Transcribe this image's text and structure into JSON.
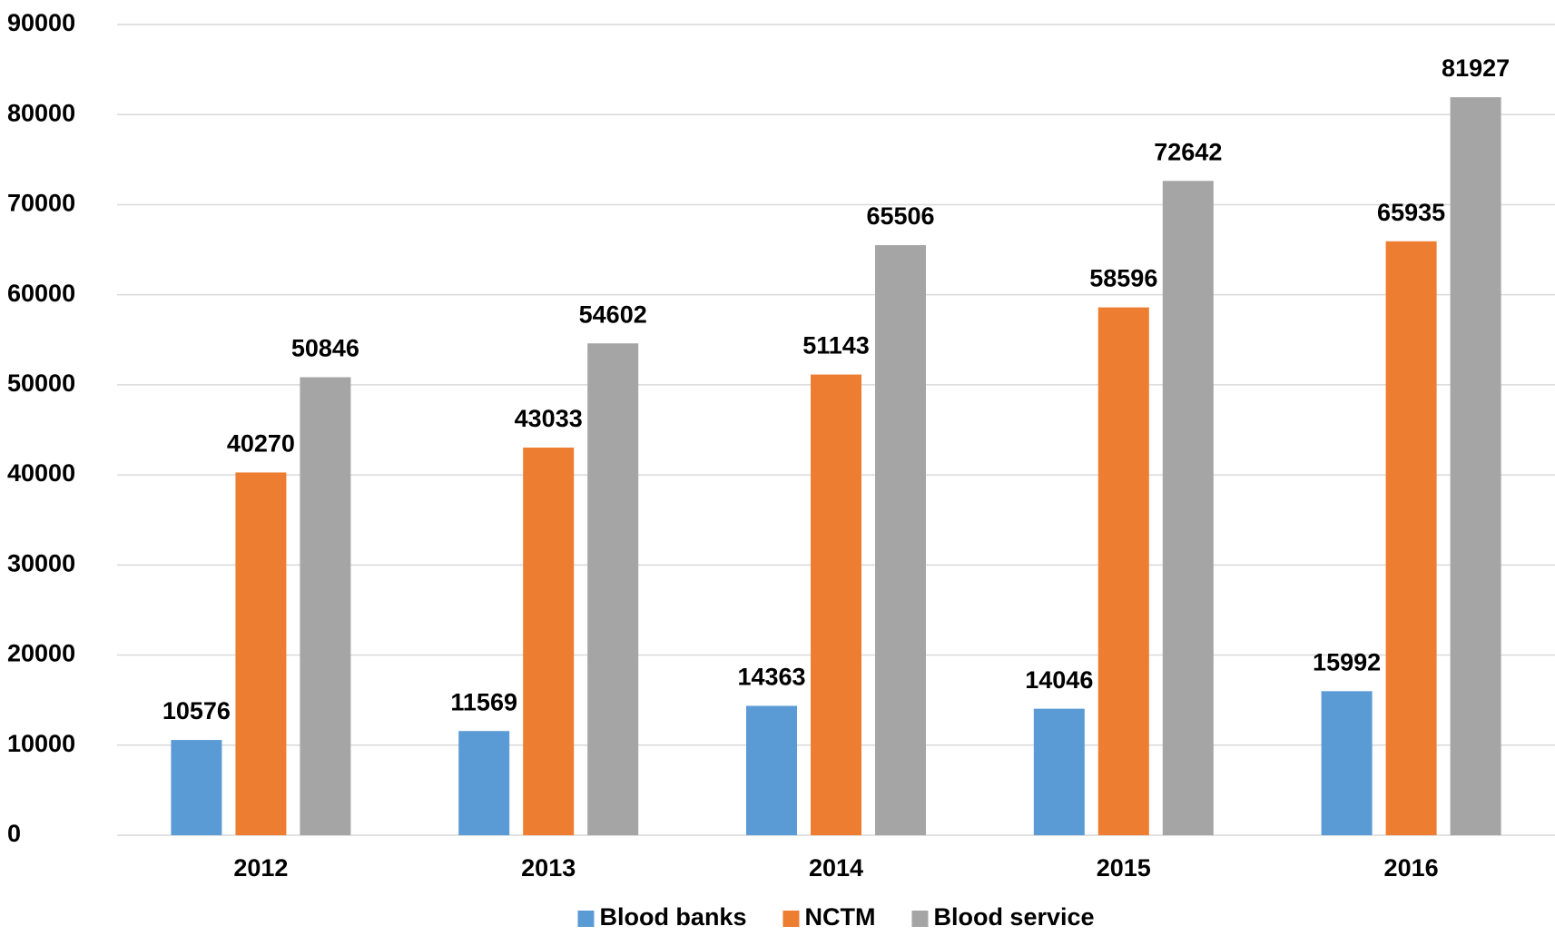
{
  "chart_data": {
    "type": "bar",
    "categories": [
      "2012",
      "2013",
      "2014",
      "2015",
      "2016"
    ],
    "series": [
      {
        "name": "Blood banks",
        "color": "#5b9bd5",
        "values": [
          10576,
          11569,
          14363,
          14046,
          15992
        ]
      },
      {
        "name": "NCTM",
        "color": "#ed7d31",
        "values": [
          40270,
          43033,
          51143,
          58596,
          65935
        ]
      },
      {
        "name": "Blood service",
        "color": "#a5a5a5",
        "values": [
          50846,
          54602,
          65506,
          72642,
          81927
        ]
      }
    ],
    "ylim": [
      0,
      90000
    ],
    "yticks": [
      0,
      10000,
      20000,
      30000,
      40000,
      50000,
      60000,
      70000,
      80000,
      90000
    ],
    "grid": true,
    "legend": "bottom"
  }
}
